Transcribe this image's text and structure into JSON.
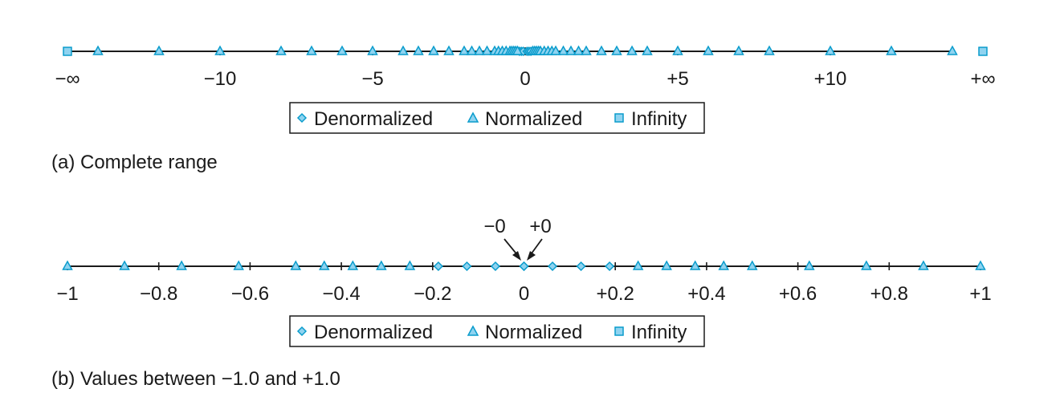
{
  "colors": {
    "marker_fill": "#8fd3f0",
    "marker_stroke": "#0a9ccc",
    "axis": "#1a1a1a"
  },
  "legend": {
    "denormalized": "Denormalized",
    "normalized": "Normalized",
    "infinity": "Infinity"
  },
  "panels": [
    {
      "caption": "(a) Complete range",
      "xlim": [
        -15,
        15
      ],
      "ticks": [
        {
          "v": -15,
          "label": "−∞"
        },
        {
          "v": -10,
          "label": "−10"
        },
        {
          "v": -5,
          "label": "−5"
        },
        {
          "v": 0,
          "label": "0"
        },
        {
          "v": 5,
          "label": "+5"
        },
        {
          "v": 10,
          "label": "+10"
        },
        {
          "v": 15,
          "label": "+∞"
        }
      ]
    },
    {
      "caption": "(b) Values between −1.0 and +1.0",
      "xlim": [
        -1,
        1
      ],
      "ticks": [
        {
          "v": -1,
          "label": "−1"
        },
        {
          "v": -0.8,
          "label": "−0.8"
        },
        {
          "v": -0.6,
          "label": "−0.6"
        },
        {
          "v": -0.4,
          "label": "−0.4"
        },
        {
          "v": -0.2,
          "label": "−0.2"
        },
        {
          "v": 0,
          "label": "0"
        },
        {
          "v": 0.2,
          "label": "+0.2"
        },
        {
          "v": 0.4,
          "label": "+0.4"
        },
        {
          "v": 0.6,
          "label": "+0.6"
        },
        {
          "v": 0.8,
          "label": "+0.8"
        },
        {
          "v": 1,
          "label": "+1"
        }
      ],
      "annotations": {
        "neg_zero": "−0",
        "pos_zero": "+0"
      }
    }
  ],
  "chart_data": [
    {
      "type": "scatter",
      "title": "(a) Complete range",
      "xlim": [
        -15,
        15
      ],
      "series": [
        {
          "name": "Denormalized",
          "values": [
            -0.1875,
            -0.125,
            -0.0625,
            0.0625,
            0.125,
            0.1875
          ]
        },
        {
          "name": "Normalized",
          "values": [
            -14,
            -12,
            -10,
            -8,
            -7,
            -6,
            -5,
            -4,
            -3.5,
            -3,
            -2.5,
            -2,
            -1.75,
            -1.5,
            -1.25,
            -1,
            -0.875,
            -0.75,
            -0.625,
            -0.5,
            -0.4375,
            -0.375,
            -0.3125,
            -0.25,
            0.25,
            0.3125,
            0.375,
            0.4375,
            0.5,
            0.625,
            0.75,
            0.875,
            1,
            1.25,
            1.5,
            1.75,
            2,
            2.5,
            3,
            3.5,
            4,
            5,
            6,
            7,
            8,
            10,
            12,
            14
          ]
        },
        {
          "name": "Infinity",
          "values": [
            -15,
            15
          ]
        }
      ]
    },
    {
      "type": "scatter",
      "title": "(b) Values between −1.0 and +1.0",
      "xlim": [
        -1,
        1
      ],
      "series": [
        {
          "name": "Denormalized",
          "values": [
            -0.1875,
            -0.125,
            -0.0625,
            -0.0,
            0.0,
            0.0625,
            0.125,
            0.1875
          ]
        },
        {
          "name": "Normalized",
          "values": [
            -1,
            -0.875,
            -0.75,
            -0.625,
            -0.5,
            -0.4375,
            -0.375,
            -0.3125,
            -0.25,
            0.25,
            0.3125,
            0.375,
            0.4375,
            0.5,
            0.625,
            0.75,
            0.875,
            1
          ]
        }
      ]
    }
  ]
}
